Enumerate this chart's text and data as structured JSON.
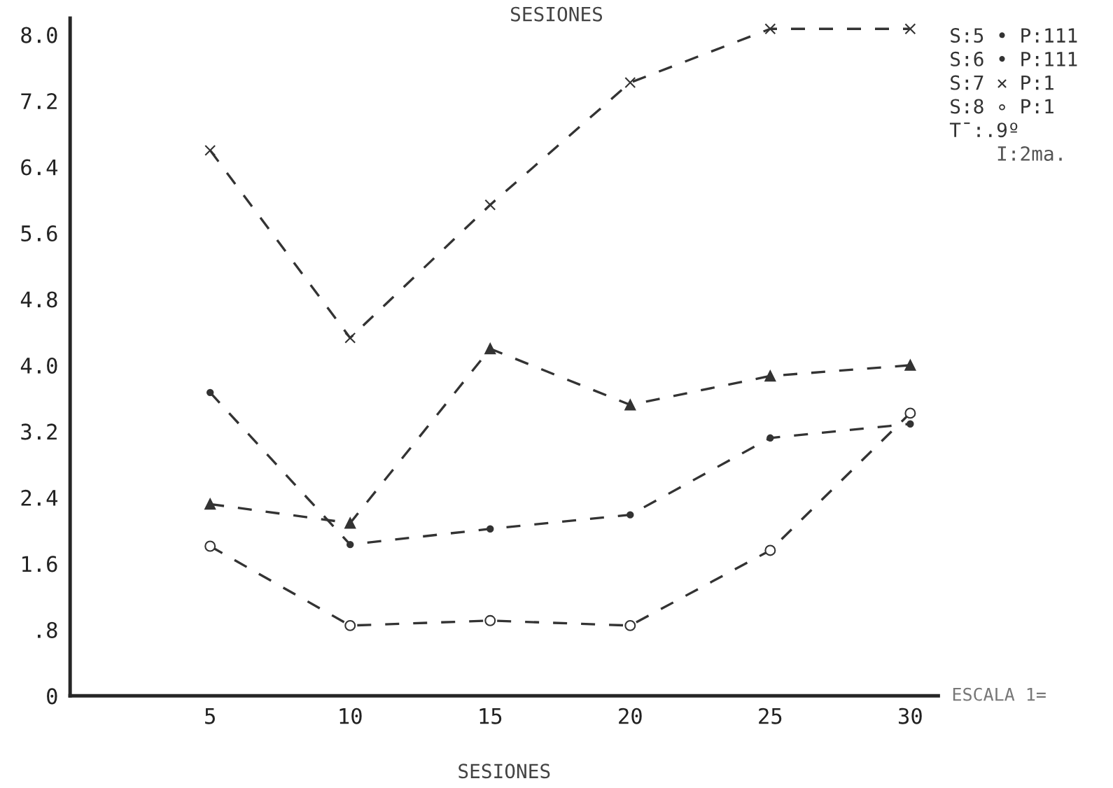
{
  "chart_data": {
    "type": "line",
    "title": "SESIONES",
    "xlabel": "SESIONES",
    "x": [
      5,
      10,
      15,
      20,
      25,
      30
    ],
    "series": [
      {
        "color": "#333333",
        "marker": "circle",
        "line_style": "dashed",
        "values": [
          3.67,
          1.83,
          2.02,
          2.19,
          3.12,
          3.29
        ]
      },
      {
        "color": "#333333",
        "marker": "triangle",
        "line_style": "dashed",
        "values": [
          2.32,
          2.09,
          4.2,
          3.52,
          3.87,
          4.0
        ]
      },
      {
        "color": "#333333",
        "marker": "cross",
        "line_style": "dashed",
        "values": [
          6.6,
          4.33,
          5.94,
          7.42,
          8.07,
          8.07
        ]
      },
      {
        "color": "#333333",
        "marker": "circle_open",
        "line_style": "dashed",
        "values": [
          1.81,
          0.85,
          0.91,
          0.85,
          1.76,
          3.42
        ]
      }
    ],
    "xlim": [
      0,
      31
    ],
    "ylim": [
      0,
      8.2
    ],
    "xticks": [
      5,
      10,
      15,
      20,
      25,
      30
    ],
    "yticks": [
      {
        "value": 0,
        "label": "0"
      },
      {
        "value": 0.8,
        "label": ".8"
      },
      1.6,
      2.4,
      3.2,
      {
        "value": 4,
        "label": "4.0"
      },
      4.8,
      5.6,
      6.4,
      7.2,
      {
        "value": 8,
        "label": "8.0"
      }
    ],
    "grid": false,
    "legend": false,
    "annotations": [
      "S:5 • P:111",
      "S:6 • P:111",
      "S:7 × P:1",
      "S:8 ∘ P:1",
      "T̄:.9º",
      "I:2ma.",
      "ESCALA 1="
    ]
  }
}
